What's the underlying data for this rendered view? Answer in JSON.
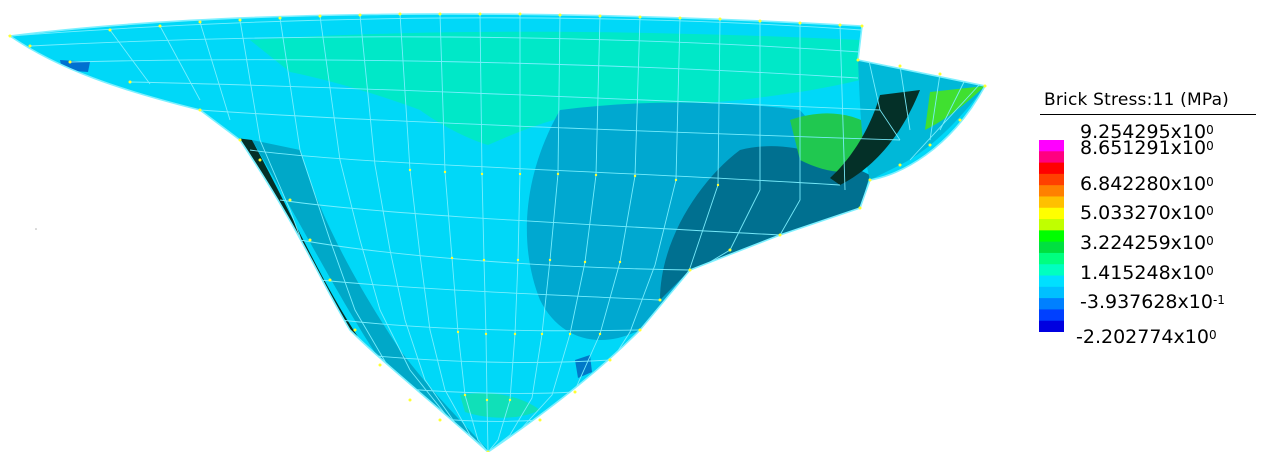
{
  "legend": {
    "title": "Brick Stress:11  (MPa)",
    "labels": [
      {
        "mantissa": "9.254295x10",
        "exponent": "0"
      },
      {
        "mantissa": "8.651291x10",
        "exponent": "0"
      },
      {
        "mantissa": "6.842280x10",
        "exponent": "0"
      },
      {
        "mantissa": "5.033270x10",
        "exponent": "0"
      },
      {
        "mantissa": "3.224259x10",
        "exponent": "0"
      },
      {
        "mantissa": "1.415248x10",
        "exponent": "0"
      },
      {
        "mantissa": "-3.937628x10",
        "exponent": "-1"
      },
      {
        "mantissa": "-2.202774x10",
        "exponent": "0"
      }
    ],
    "bands": [
      "#ff00ff",
      "#ff0080",
      "#ff0000",
      "#ff4000",
      "#ff8000",
      "#ffc000",
      "#ffff00",
      "#c0ff00",
      "#00ff00",
      "#00e040",
      "#00ff80",
      "#00ffc0",
      "#00e0ff",
      "#00c0ff",
      "#0080ff",
      "#0040ff",
      "#0000e0"
    ]
  },
  "colors": {
    "mesh_line": "#7df0ff",
    "node": "#ffff30",
    "base_fill": "#00d8f8",
    "upper_fill": "#00e8c8",
    "dark_fill": "#0090b0",
    "crevice": "#043028",
    "green": "#30e030"
  }
}
